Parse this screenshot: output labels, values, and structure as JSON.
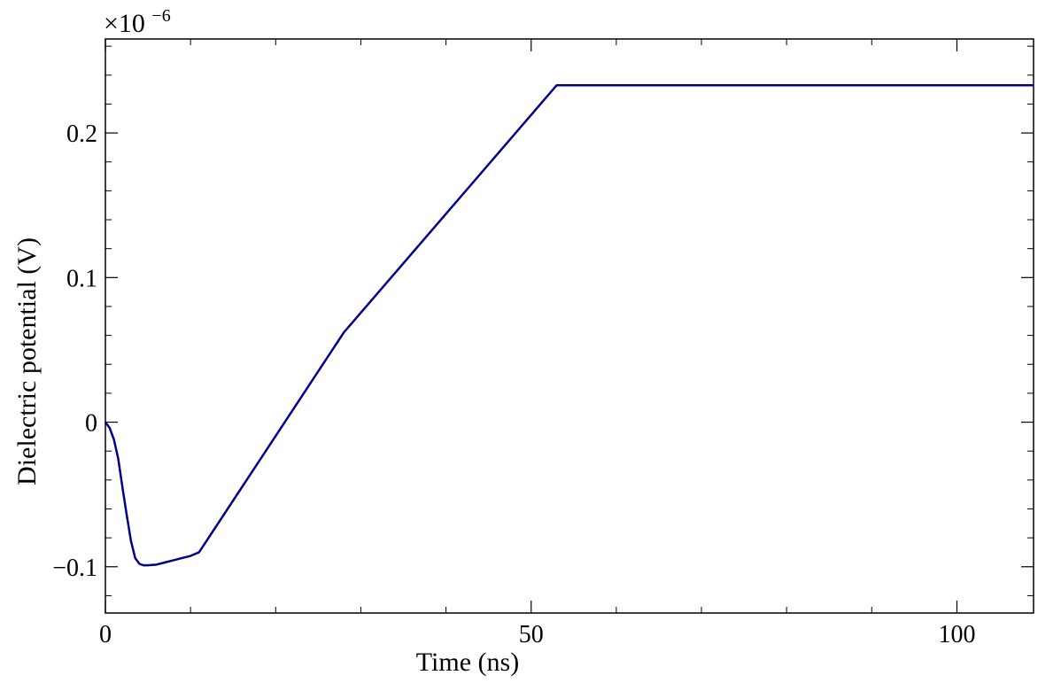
{
  "chart_data": {
    "type": "line",
    "title": "",
    "xlabel": "Time (ns)",
    "ylabel": "Dielectric potential (V)",
    "y_multiplier": {
      "base": "×10",
      "exponent": "−6"
    },
    "xlim": [
      0,
      109
    ],
    "ylim": [
      -0.132,
      0.265
    ],
    "x_ticks": [
      0,
      50,
      100
    ],
    "x_tick_labels": [
      "0",
      "50",
      "100"
    ],
    "x_minor_step": 10,
    "y_ticks": [
      -0.1,
      0,
      0.1,
      0.2
    ],
    "y_tick_labels": [
      "−0.1",
      "0",
      "0.1",
      "0.2"
    ],
    "y_minor_step": 0.02,
    "grid": false,
    "legend": "none",
    "series": [
      {
        "color": "#00008b",
        "x": [
          0,
          0.5,
          1.0,
          1.5,
          2.0,
          2.5,
          3.0,
          3.5,
          4.0,
          4.5,
          5.0,
          6.0,
          7.0,
          8.0,
          9.0,
          10.0,
          11.0,
          28.0,
          53.0,
          109
        ],
        "y": [
          0,
          -0.004,
          -0.012,
          -0.025,
          -0.045,
          -0.064,
          -0.082,
          -0.094,
          -0.098,
          -0.099,
          -0.099,
          -0.0985,
          -0.097,
          -0.0955,
          -0.094,
          -0.0925,
          -0.09,
          0.062,
          0.233,
          0.233
        ]
      }
    ]
  }
}
